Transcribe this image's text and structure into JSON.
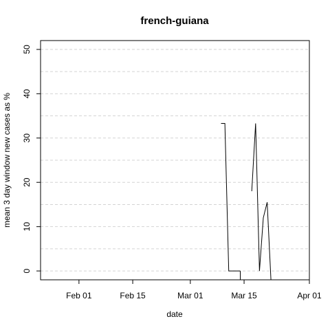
{
  "chart_data": {
    "type": "line",
    "title": "french-guiana",
    "xlabel": "date",
    "ylabel": "mean  3  day window new cases as %",
    "x_tick_dates": [
      "2020-02-01",
      "2020-02-15",
      "2020-03-01",
      "2020-03-15",
      "2020-04-01"
    ],
    "x_tick_labels": [
      "Feb 01",
      "Feb 15",
      "Mar 01",
      "Mar 15",
      "Apr 01"
    ],
    "xlim": [
      "2020-01-22",
      "2020-04-01"
    ],
    "y_ticks": [
      0,
      10,
      20,
      30,
      40,
      50
    ],
    "ylim": [
      -2,
      52
    ],
    "grid": true,
    "segments": [
      {
        "x": [
          "2020-03-09",
          "2020-03-10",
          "2020-03-11",
          "2020-03-12",
          "2020-03-13",
          "2020-03-14"
        ],
        "y": [
          33.3,
          33.3,
          0,
          0,
          0,
          0
        ]
      },
      {
        "x": [
          "2020-03-14",
          "2020-03-14"
        ],
        "y": [
          0,
          -2
        ]
      },
      {
        "x": [
          "2020-03-17",
          "2020-03-18",
          "2020-03-19",
          "2020-03-20",
          "2020-03-21",
          "2020-03-21",
          "2020-03-22"
        ],
        "y": [
          18,
          33.3,
          0,
          12,
          15.5,
          15.5,
          -2
        ]
      }
    ]
  }
}
